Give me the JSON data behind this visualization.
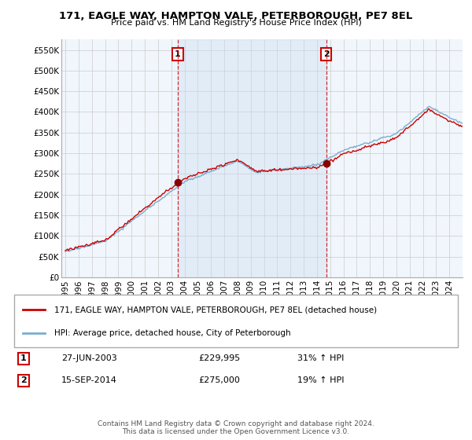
{
  "title": "171, EAGLE WAY, HAMPTON VALE, PETERBOROUGH, PE7 8EL",
  "subtitle": "Price paid vs. HM Land Registry's House Price Index (HPI)",
  "ylim": [
    0,
    575000
  ],
  "yticks": [
    0,
    50000,
    100000,
    150000,
    200000,
    250000,
    300000,
    350000,
    400000,
    450000,
    500000,
    550000
  ],
  "ytick_labels": [
    "£0",
    "£50K",
    "£100K",
    "£150K",
    "£200K",
    "£250K",
    "£300K",
    "£350K",
    "£400K",
    "£450K",
    "£500K",
    "£550K"
  ],
  "sale1_x": 2003.49,
  "sale1_y": 229995,
  "sale1_label": "1",
  "sale1_date": "27-JUN-2003",
  "sale1_price": "£229,995",
  "sale1_hpi": "31% ↑ HPI",
  "sale2_x": 2014.71,
  "sale2_y": 275000,
  "sale2_label": "2",
  "sale2_date": "15-SEP-2014",
  "sale2_price": "£275,000",
  "sale2_hpi": "19% ↑ HPI",
  "line1_color": "#cc0000",
  "line2_color": "#7aadcf",
  "shade_color": "#ddeeff",
  "background_color": "#ffffff",
  "grid_color": "#cccccc",
  "legend1": "171, EAGLE WAY, HAMPTON VALE, PETERBOROUGH, PE7 8EL (detached house)",
  "legend2": "HPI: Average price, detached house, City of Peterborough",
  "footer": "Contains HM Land Registry data © Crown copyright and database right 2024.\nThis data is licensed under the Open Government Licence v3.0.",
  "xlim": [
    1994.7,
    2025.0
  ],
  "xticks": [
    1995,
    1996,
    1997,
    1998,
    1999,
    2000,
    2001,
    2002,
    2003,
    2004,
    2005,
    2006,
    2007,
    2008,
    2009,
    2010,
    2011,
    2012,
    2013,
    2014,
    2015,
    2016,
    2017,
    2018,
    2019,
    2020,
    2021,
    2022,
    2023,
    2024
  ]
}
